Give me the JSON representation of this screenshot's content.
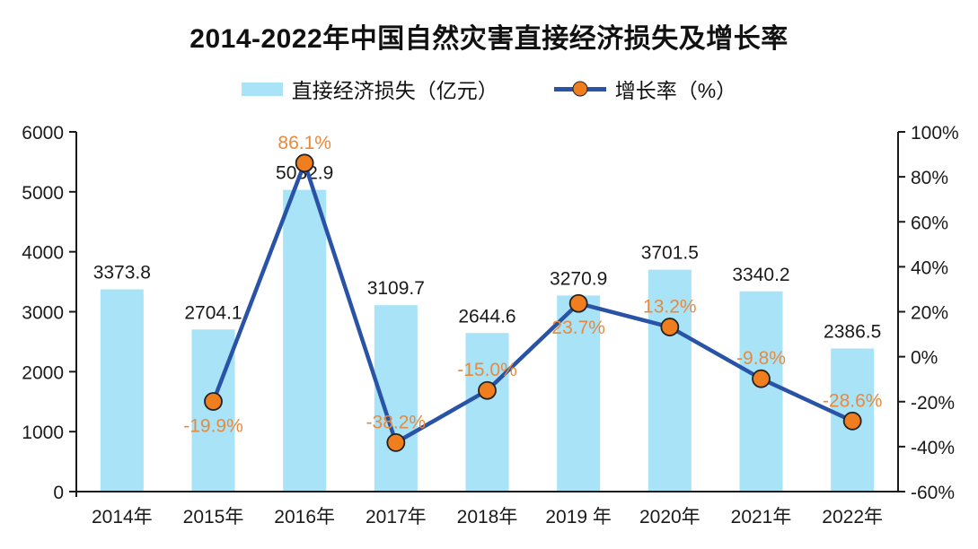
{
  "title": "2014-2022年中国自然灾害直接经济损失及增长率",
  "colors": {
    "bar": "#A9E3F7",
    "line": "#2953A6",
    "marker": "#F07E1E",
    "growth_label": "#E78A3E",
    "value_label": "#1A1A1A",
    "axis": "#1A1A1A",
    "title_text": "#111111"
  },
  "chart_data": {
    "type": "bar+line combo",
    "title": "2014-2022年中国自然灾害直接经济损失及增长率",
    "categories": [
      "2014年",
      "2015年",
      "2016年",
      "2017年",
      "2018年",
      "2019 年",
      "2020年",
      "2021年",
      "2022年"
    ],
    "series": [
      {
        "name": "直接经济损失（亿元）",
        "type": "bar",
        "axis": "left",
        "color": "#A9E3F7",
        "values": [
          3373.8,
          2704.1,
          5032.9,
          3109.7,
          2644.6,
          3270.9,
          3701.5,
          3340.2,
          2386.5
        ],
        "value_labels": [
          "3373.8",
          "2704.1",
          "5032.9",
          "3109.7",
          "2644.6",
          "3270.9",
          "3701.5",
          "3340.2",
          "2386.5"
        ]
      },
      {
        "name": "增长率（%）",
        "type": "line",
        "axis": "right",
        "color": "#2953A6",
        "marker_color": "#F07E1E",
        "values": [
          null,
          -19.9,
          86.1,
          -38.2,
          -15.0,
          23.7,
          13.2,
          -9.8,
          -28.6
        ],
        "value_labels": [
          "",
          "-19.9%",
          "86.1%",
          "-38.2%",
          "-15.0%",
          "23.7%",
          "13.2%",
          "-9.8%",
          "-28.6%"
        ],
        "label_positions": [
          "",
          "below",
          "above",
          "above",
          "above",
          "below",
          "above",
          "above",
          "above"
        ]
      }
    ],
    "legend": [
      {
        "label": "直接经济损失（亿元）",
        "swatch": "bar-swatch",
        "color": "#A9E3F7"
      },
      {
        "label": "增长率（%）",
        "swatch": "line-marker",
        "line_color": "#2953A6",
        "marker_color": "#F07E1E"
      }
    ],
    "left_axis": {
      "min": 0,
      "max": 6000,
      "step": 1000,
      "tick_labels": [
        "0",
        "1000",
        "2000",
        "3000",
        "4000",
        "5000",
        "6000"
      ]
    },
    "right_axis": {
      "min": -60,
      "max": 100,
      "step": 20,
      "tick_labels": [
        "-60%",
        "-40%",
        "-20%",
        "0%",
        "20%",
        "40%",
        "60%",
        "80%",
        "100%"
      ]
    },
    "grid": false,
    "legend_position": "top-center"
  }
}
